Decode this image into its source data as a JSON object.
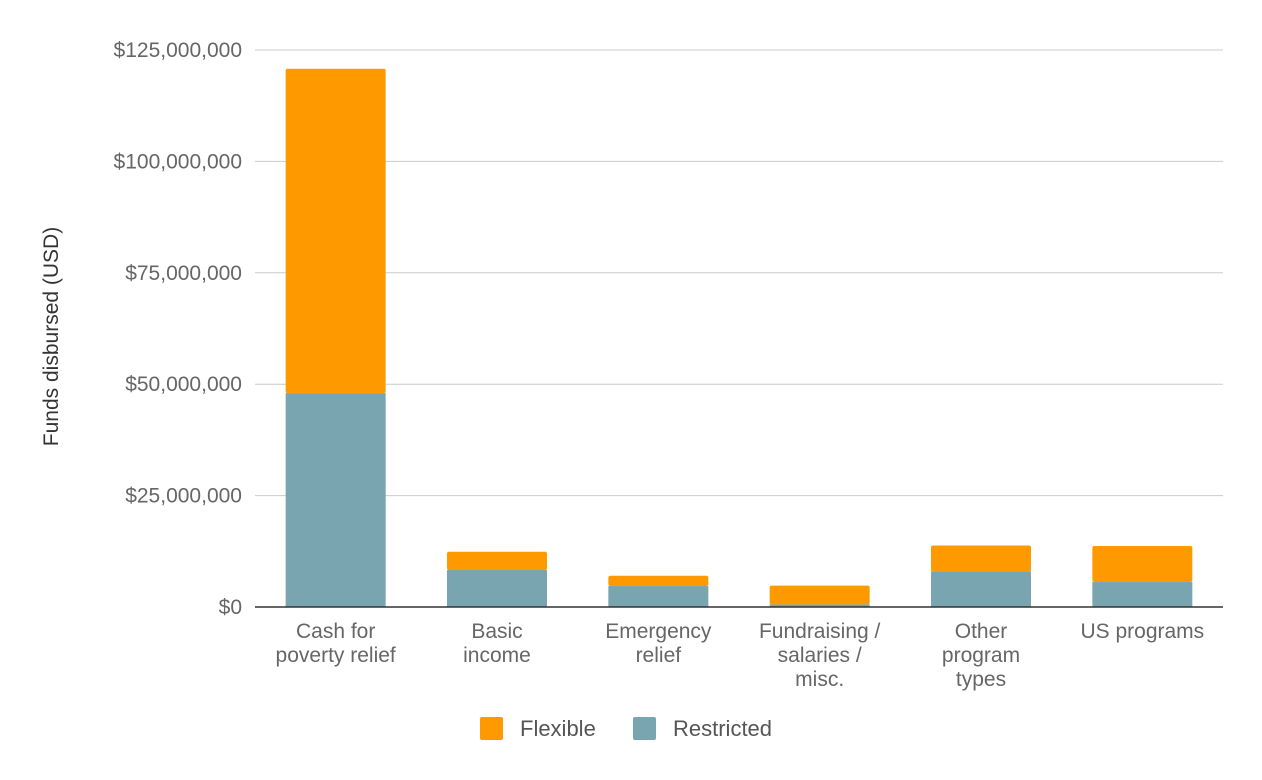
{
  "chart_data": {
    "type": "bar",
    "stacked": true,
    "ylabel": "Funds disbursed (USD)",
    "xlabel": "",
    "ylim": [
      0,
      125000000
    ],
    "y_ticks": [
      0,
      25000000,
      50000000,
      75000000,
      100000000,
      125000000
    ],
    "y_tick_labels": [
      "$0",
      "$25,000,000",
      "$50,000,000",
      "$75,000,000",
      "$100,000,000",
      "$125,000,000"
    ],
    "categories": [
      [
        "Cash for",
        "poverty relief"
      ],
      [
        "Basic",
        "income"
      ],
      [
        "Emergency",
        "relief"
      ],
      [
        "Fundraising /",
        "salaries /",
        "misc."
      ],
      [
        "Other",
        "program",
        "types"
      ],
      [
        "US programs"
      ]
    ],
    "series": [
      {
        "name": "Restricted",
        "color": "#78a5b0",
        "values": [
          48000000,
          8300000,
          4700000,
          600000,
          8000000,
          5600000
        ]
      },
      {
        "name": "Flexible",
        "color": "#ff9900",
        "values": [
          72800000,
          4100000,
          2300000,
          4200000,
          5800000,
          8100000
        ]
      }
    ],
    "legend": [
      "Flexible",
      "Restricted"
    ],
    "legend_position": "bottom",
    "grid": true
  }
}
